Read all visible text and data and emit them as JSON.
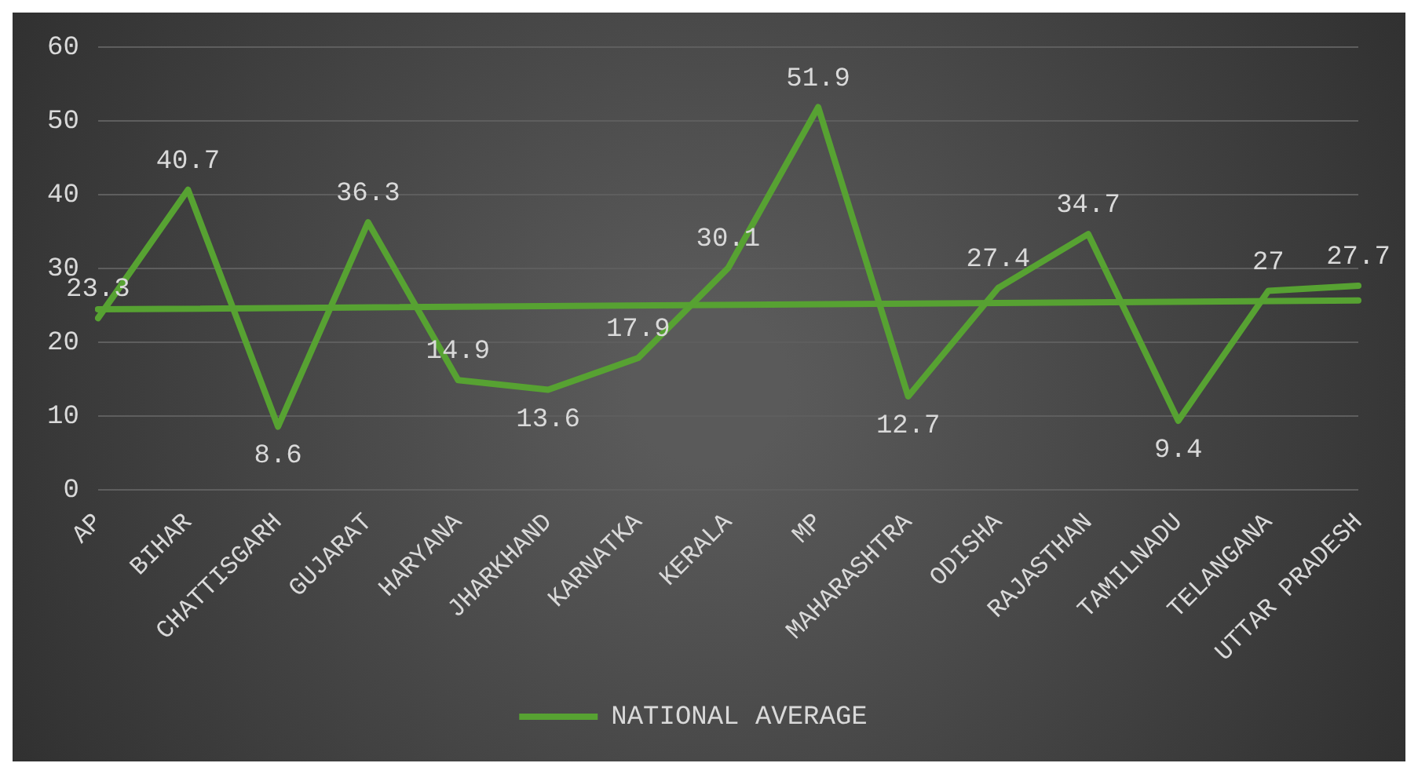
{
  "chart_data": {
    "type": "line",
    "categories": [
      "AP",
      "BIHAR",
      "CHATTISGARH",
      "GUJARAT",
      "HARYANA",
      "JHARKHAND",
      "KARNATKA",
      "KERALA",
      "MP",
      "MAHARASHTRA",
      "ODISHA",
      "RAJASTHAN",
      "TAMILNADU",
      "TELANGANA",
      "UTTAR PRADESH"
    ],
    "series": [
      {
        "name": "NATIONAL AVERAGE",
        "color": "#57a232",
        "values": [
          23.3,
          40.7,
          8.6,
          36.3,
          14.9,
          13.6,
          17.9,
          30.1,
          51.9,
          12.7,
          27.4,
          34.7,
          9.4,
          27,
          27.7
        ],
        "value_labels": [
          "23.3",
          "40.7",
          "8.6",
          "36.3",
          "14.9",
          "13.6",
          "17.9",
          "30.1",
          "51.9",
          "12.7",
          "27.4",
          "34.7",
          "9.4",
          "27",
          "27.7"
        ]
      },
      {
        "type": "line",
        "color": "#57a232",
        "x": [
          "AP",
          "UTTAR PRADESH"
        ],
        "values": [
          24.5,
          25.7
        ]
      }
    ],
    "ylim": [
      0,
      60
    ],
    "yticks": [
      0,
      10,
      20,
      30,
      40,
      50,
      60
    ],
    "grid": "y",
    "legend": "bottom",
    "marker": "none",
    "line_style": "solid"
  }
}
